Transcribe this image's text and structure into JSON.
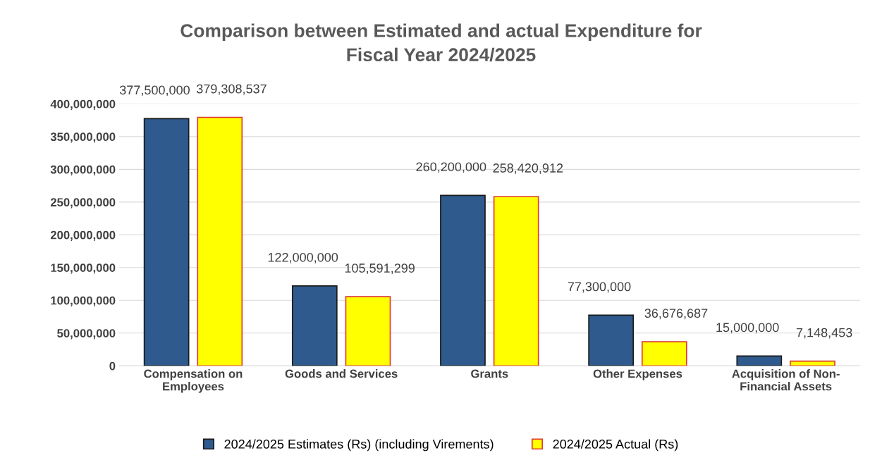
{
  "chart_data": {
    "type": "bar",
    "title": "Comparison between Estimated and actual Expenditure for\nFiscal Year 2024/2025",
    "categories": [
      "Compensation on\nEmployees",
      "Goods and Services",
      "Grants",
      "Other Expenses",
      "Acquisition of Non-\nFinancial Assets"
    ],
    "series": [
      {
        "name": "2024/2025 Estimates (Rs) (including Virements)",
        "color": "#2f5a8e",
        "values": [
          377500000,
          122000000,
          260200000,
          77300000,
          15000000
        ],
        "value_labels": [
          "377,500,000",
          "122,000,000",
          "260,200,000",
          "77,300,000",
          "15,000,000"
        ]
      },
      {
        "name": "2024/2025 Actual (Rs)",
        "color": "#ffff00",
        "values": [
          379308537,
          105591299,
          258420912,
          36676687,
          7148453
        ],
        "value_labels": [
          "379,308,537",
          "105,591,299",
          "258,420,912",
          "36,676,687",
          "7,148,453"
        ]
      }
    ],
    "ylim": [
      0,
      400000000
    ],
    "yticks": [
      0,
      {
        "value": 50000000,
        "label": "50,000,000"
      },
      {
        "value": 100000000,
        "label": "100,000,000"
      },
      {
        "value": 150000000,
        "label": "150,000,000"
      },
      {
        "value": 200000000,
        "label": "200,000,000"
      },
      {
        "value": 250000000,
        "label": "250,000,000"
      },
      {
        "value": 300000000,
        "label": "300,000,000"
      },
      {
        "value": 350000000,
        "label": "350,000,000"
      },
      {
        "value": 400000000,
        "label": "400,000,000"
      }
    ],
    "grid": "y",
    "legend": "bottom"
  }
}
